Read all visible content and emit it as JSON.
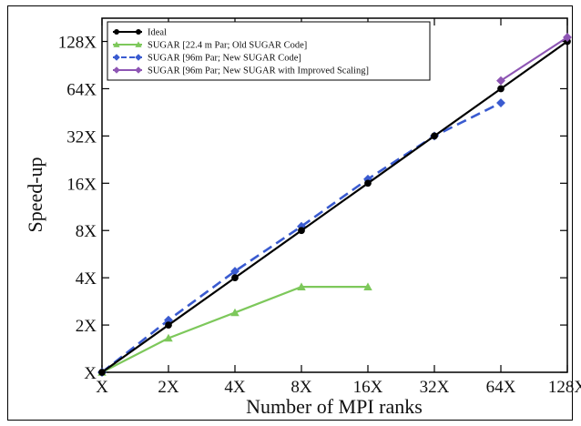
{
  "chart_data": {
    "type": "line",
    "scale": "log2",
    "xlabel": "Number of MPI ranks",
    "ylabel": "Speed-up",
    "x_ticks": [
      "X",
      "2X",
      "4X",
      "8X",
      "16X",
      "32X",
      "64X",
      "128X"
    ],
    "y_ticks": [
      "X",
      "2X",
      "4X",
      "8X",
      "16X",
      "32X",
      "64X",
      "128X"
    ],
    "xlim": [
      1,
      128
    ],
    "ylim": [
      1,
      180
    ],
    "legend_position": "top-left",
    "series": [
      {
        "name": "Ideal",
        "color": "#000000",
        "marker": "circle",
        "dash": "solid",
        "x": [
          1,
          2,
          4,
          8,
          16,
          32,
          64,
          128
        ],
        "y": [
          1,
          2,
          4,
          8,
          16,
          32,
          64,
          128
        ]
      },
      {
        "name": "SUGAR [22.4 m Par; Old SUGAR Code]",
        "color": "#7dc85b",
        "marker": "triangle",
        "dash": "solid",
        "x": [
          1,
          2,
          4,
          8,
          16
        ],
        "y": [
          1,
          1.65,
          2.4,
          3.5,
          3.5
        ]
      },
      {
        "name": "SUGAR [96m Par; New SUGAR Code]",
        "color": "#3a5bd0",
        "marker": "diamond",
        "dash": "dashed",
        "x": [
          1,
          2,
          4,
          8,
          16,
          32,
          64
        ],
        "y": [
          1,
          2.15,
          4.4,
          8.5,
          17,
          32,
          52
        ]
      },
      {
        "name": "SUGAR [96m Par; New SUGAR with Improved Scaling]",
        "color": "#8e56b4",
        "marker": "diamond",
        "dash": "solid",
        "x": [
          64,
          128
        ],
        "y": [
          72,
          136
        ]
      }
    ]
  }
}
